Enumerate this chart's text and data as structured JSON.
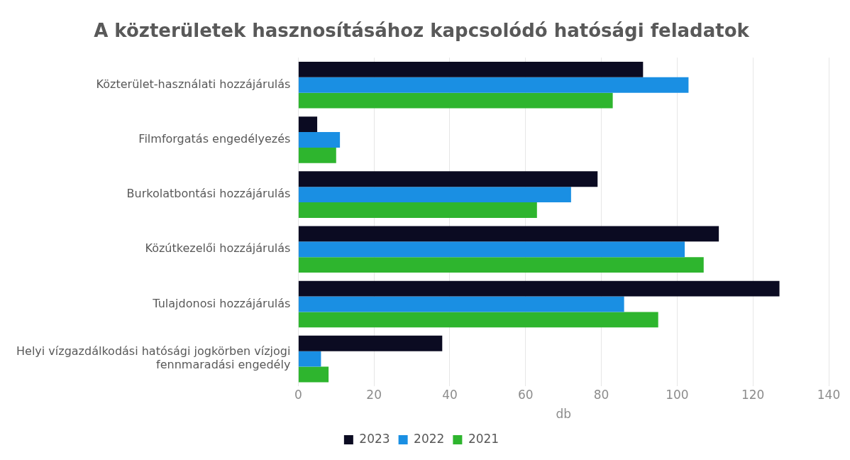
{
  "chart_data": {
    "type": "bar",
    "orientation": "horizontal",
    "title": "A közterületek hasznosításához kapcsolódó hatósági feladatok",
    "xlabel": "db",
    "categories": [
      "Közterület-használati hozzájárulás",
      "Filmforgatás engedélyezés",
      "Burkolatbontási hozzájárulás",
      "Közútkezelői hozzájárulás",
      "Tulajdonosi hozzájárulás",
      "Helyi vízgazdálkodási hatósági jogkörben vízjogi fennmaradási engedély"
    ],
    "series": [
      {
        "name": "2023",
        "color": "#0b0b22",
        "values": [
          91,
          5,
          79,
          111,
          127,
          38
        ]
      },
      {
        "name": "2022",
        "color": "#1a8fe3",
        "values": [
          103,
          11,
          72,
          102,
          86,
          6
        ]
      },
      {
        "name": "2021",
        "color": "#2eb52e",
        "values": [
          83,
          10,
          63,
          107,
          95,
          8
        ]
      }
    ],
    "xlim": [
      0,
      140
    ],
    "xticks": [
      0,
      20,
      40,
      60,
      80,
      100,
      120,
      140
    ],
    "grid": "x",
    "legend": "bottom"
  }
}
